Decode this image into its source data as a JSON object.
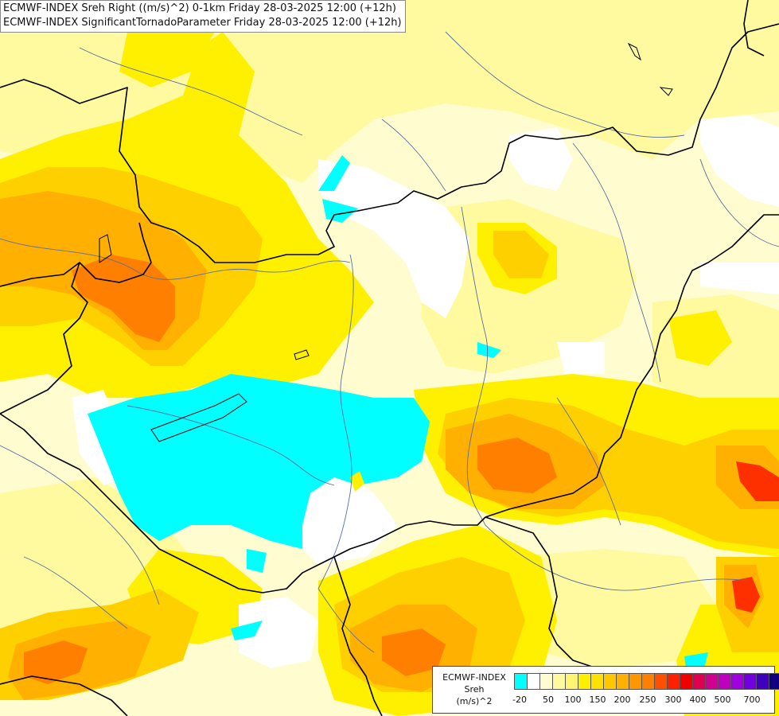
{
  "title": {
    "line1": "ECMWF-INDEX Sreh Right ((m/s)^2) 0-1km Friday 28-03-2025 12:00 (+12h)",
    "line2": "ECMWF-INDEX SignificantTornadoParameter Friday 28-03-2025 12:00 (+12h)"
  },
  "legend": {
    "line1": "ECMWF-INDEX",
    "line2": "Sreh",
    "line3": "(m/s)^2",
    "colors": [
      "#00ffff",
      "#ffffff",
      "#fffdd0",
      "#fffaa0",
      "#fff570",
      "#fff000",
      "#ffe000",
      "#ffc800",
      "#ffb000",
      "#ff9800",
      "#ff7f00",
      "#ff5000",
      "#ff2000",
      "#f00000",
      "#e00050",
      "#d00090",
      "#c000c0",
      "#a000e0",
      "#7000e0",
      "#4000c0",
      "#100080"
    ],
    "ticks": [
      "-20",
      "50",
      "100",
      "150",
      "200",
      "250",
      "300",
      "400",
      "500",
      "700"
    ]
  },
  "map": {
    "background": "#fffdd0",
    "colors": {
      "light_yellow": "#fffaa0",
      "yellow": "#fff000",
      "gold": "#ffd000",
      "orange_light": "#ffb000",
      "orange": "#ff9800",
      "orange_dark": "#ff7f00",
      "red_orange": "#ff5000",
      "red": "#f01000",
      "cyan": "#00ffff",
      "white": "#ffffff",
      "border": "#000000",
      "river": "#5a6ea0"
    }
  }
}
